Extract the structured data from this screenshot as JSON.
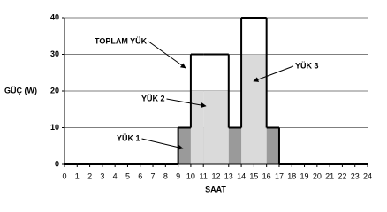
{
  "chart_data": {
    "type": "step-area",
    "x_label": "SAAT",
    "y_label": "GÜÇ (W)",
    "xlim": [
      0,
      24
    ],
    "xticks": [
      0,
      1,
      2,
      3,
      4,
      5,
      6,
      7,
      8,
      9,
      10,
      11,
      12,
      13,
      14,
      15,
      16,
      17,
      18,
      19,
      20,
      21,
      22,
      23,
      24
    ],
    "ylim": [
      0,
      40
    ],
    "yticks": [
      0,
      10,
      20,
      30,
      40
    ],
    "grid": true,
    "series": [
      {
        "name": "YÜK 1",
        "color": "#9a9a9a",
        "values": [
          0,
          0,
          0,
          0,
          0,
          0,
          0,
          0,
          0,
          10,
          10,
          10,
          10,
          10,
          10,
          10,
          10,
          0,
          0,
          0,
          0,
          0,
          0,
          0
        ]
      },
      {
        "name": "YÜK 2",
        "color": "#dadada",
        "values": [
          0,
          0,
          0,
          0,
          0,
          0,
          0,
          0,
          0,
          0,
          20,
          20,
          20,
          0,
          0,
          0,
          0,
          0,
          0,
          0,
          0,
          0,
          0,
          0
        ]
      },
      {
        "name": "YÜK 3",
        "color": "#dadada",
        "values": [
          0,
          0,
          0,
          0,
          0,
          0,
          0,
          0,
          0,
          0,
          0,
          0,
          0,
          0,
          30,
          30,
          0,
          0,
          0,
          0,
          0,
          0,
          0,
          0
        ]
      },
      {
        "name": "TOPLAM YÜK",
        "color": "#000000",
        "values": [
          0,
          0,
          0,
          0,
          0,
          0,
          0,
          0,
          0,
          10,
          30,
          30,
          30,
          10,
          40,
          40,
          10,
          0,
          0,
          0,
          0,
          0,
          0,
          0
        ]
      }
    ]
  }
}
